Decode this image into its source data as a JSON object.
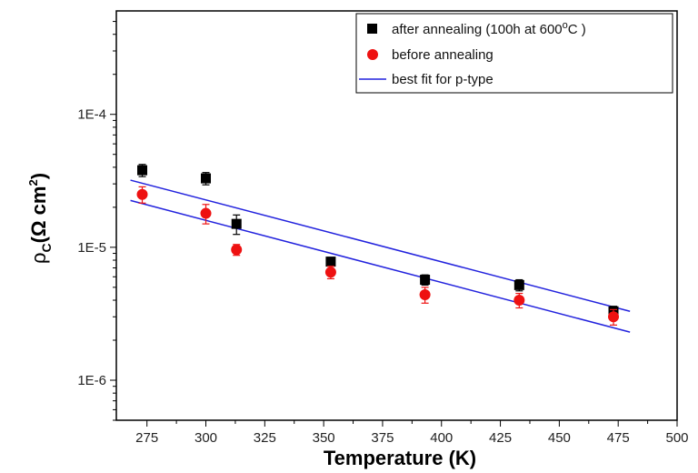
{
  "chart_data": {
    "type": "scatter",
    "xlabel": "Temperature (K)",
    "ylabel": {
      "base": "ρ",
      "sub": "C",
      "unit_pre": "(Ω cm",
      "unit_sup": "2",
      "unit_post": ")"
    },
    "xlim": [
      262,
      500
    ],
    "ylim": [
      5e-07,
      0.0006
    ],
    "yscale": "log",
    "x_ticks": [
      275,
      300,
      325,
      350,
      375,
      400,
      425,
      450,
      475,
      500
    ],
    "y_ticks": [
      {
        "value": 0.0001,
        "label": "1E-4"
      },
      {
        "value": 1e-05,
        "label": "1E-5"
      },
      {
        "value": 1e-06,
        "label": "1E-6"
      }
    ],
    "grid": false,
    "legend_position": "top-right",
    "series": [
      {
        "name": "after annealing (100h at 600°C )",
        "legend_parts": [
          "after annealing (100h at 600",
          "C )"
        ],
        "marker": "square",
        "color": "#000000",
        "points": [
          {
            "x": 273,
            "y": 3.8e-05,
            "err": 4e-06
          },
          {
            "x": 300,
            "y": 3.3e-05,
            "err": 3.5e-06
          },
          {
            "x": 313,
            "y": 1.5e-05,
            "err": 2.5e-06
          },
          {
            "x": 353,
            "y": 7.8e-06,
            "err": 6e-07
          },
          {
            "x": 393,
            "y": 5.7e-06,
            "err": 5e-07
          },
          {
            "x": 433,
            "y": 5.2e-06,
            "err": 5e-07
          },
          {
            "x": 473,
            "y": 3.3e-06,
            "err": 3e-07
          }
        ]
      },
      {
        "name": "before annealing",
        "marker": "circle",
        "color": "#ee1111",
        "points": [
          {
            "x": 273,
            "y": 2.5e-05,
            "err": 3.5e-06
          },
          {
            "x": 300,
            "y": 1.8e-05,
            "err": 3e-06
          },
          {
            "x": 313,
            "y": 9.6e-06,
            "err": 9e-07
          },
          {
            "x": 353,
            "y": 6.5e-06,
            "err": 7e-07
          },
          {
            "x": 393,
            "y": 4.4e-06,
            "err": 6e-07
          },
          {
            "x": 433,
            "y": 4e-06,
            "err": 5e-07
          },
          {
            "x": 473,
            "y": 3e-06,
            "err": 4e-07
          }
        ]
      },
      {
        "name": "best fit for p-type",
        "marker": "line",
        "color": "#2222dd",
        "lines": [
          {
            "x": [
              268,
              480
            ],
            "y": [
              3.2e-05,
              3.3e-06
            ]
          },
          {
            "x": [
              268,
              480
            ],
            "y": [
              2.25e-05,
              2.3e-06
            ]
          }
        ]
      }
    ]
  }
}
